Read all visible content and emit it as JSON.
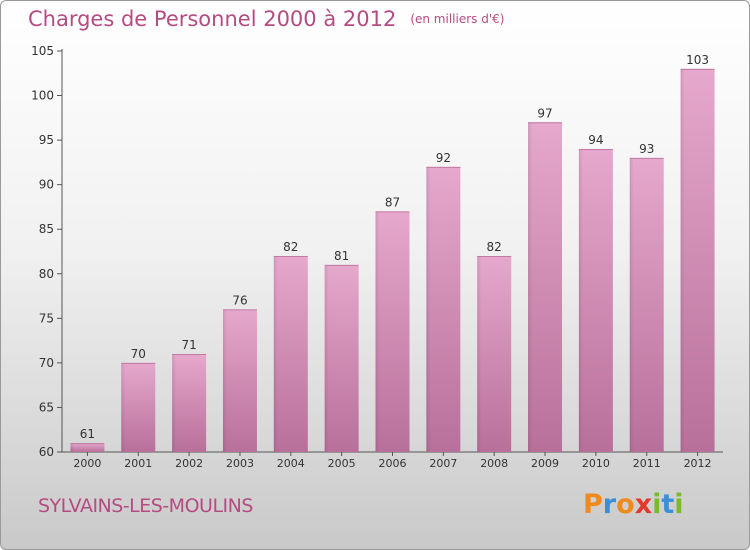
{
  "title": "Charges de Personnel 2000 à 2012",
  "subtitle": "(en milliers d'€)",
  "commune": "SYLVAINS-LES-MOULINS",
  "logo": {
    "letters": [
      "P",
      "r",
      "o",
      "x",
      "i",
      "t",
      "i"
    ],
    "colors": [
      "#f08a1e",
      "#3a8fd6",
      "#f08a1e",
      "#e23b2e",
      "#7cb92c",
      "#3a8fd6",
      "#7cb92c"
    ]
  },
  "chart_data": {
    "type": "bar",
    "title": "Charges de Personnel 2000 à 2012",
    "subtitle": "(en milliers d'€)",
    "categories": [
      "2000",
      "2001",
      "2002",
      "2003",
      "2004",
      "2005",
      "2006",
      "2007",
      "2008",
      "2009",
      "2010",
      "2011",
      "2012"
    ],
    "values": [
      61,
      70,
      71,
      76,
      82,
      81,
      87,
      92,
      82,
      97,
      94,
      93,
      103
    ],
    "ylim": [
      60,
      105
    ],
    "yticks": [
      60,
      65,
      70,
      75,
      80,
      85,
      90,
      95,
      100,
      105
    ],
    "grid": false,
    "colors": {
      "bar": "#dd9ac2",
      "bar_dark": "#b8709a",
      "text": "#333333",
      "accent": "#b44c82"
    }
  }
}
